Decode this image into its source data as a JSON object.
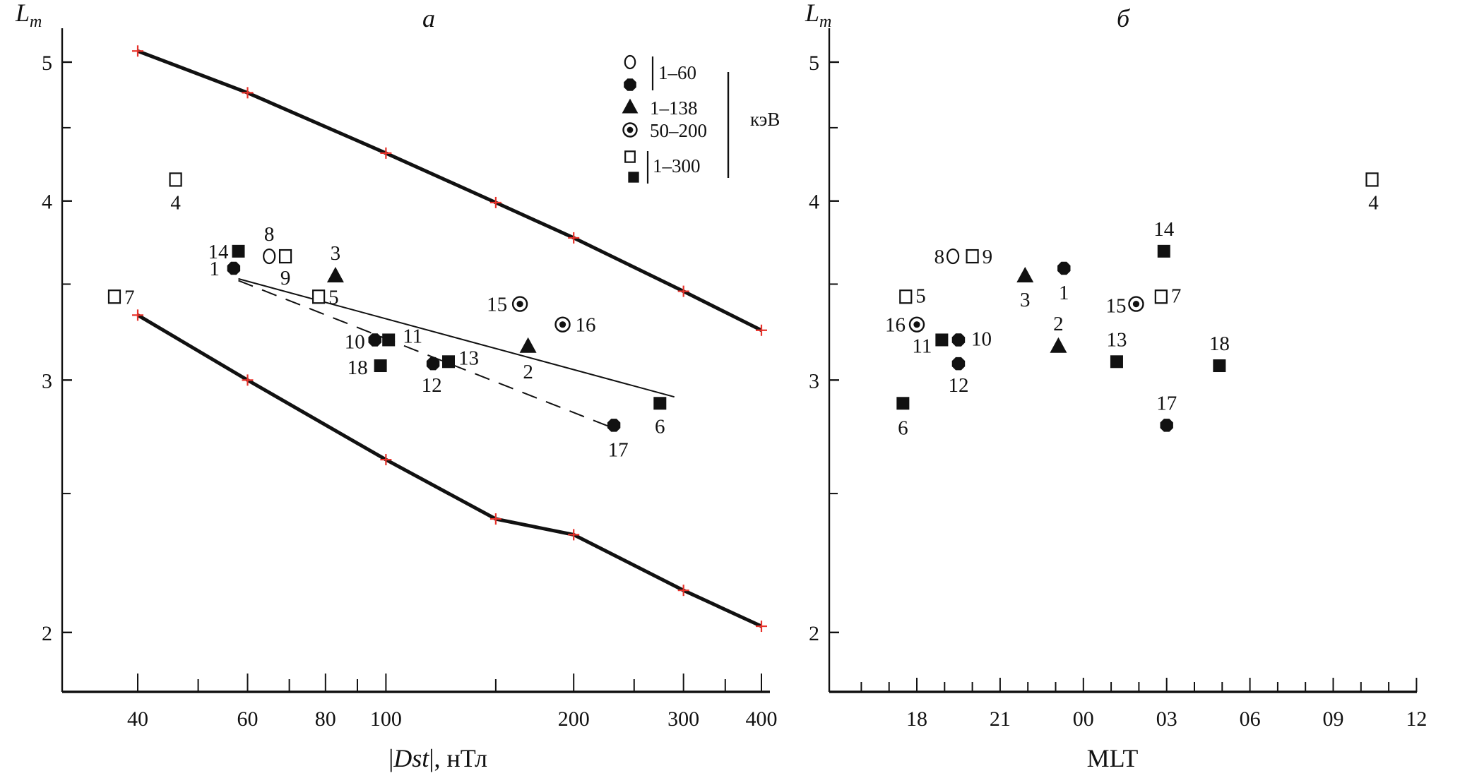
{
  "chart_data": [
    {
      "panel": "a",
      "type": "scatter",
      "title": "a",
      "xlabel_prefix": "|",
      "xlabel_italic": "Dst",
      "xlabel_suffix": "|, нТл",
      "ylabel_main": "L",
      "ylabel_sub": "m",
      "xscale": "log",
      "yscale": "log",
      "xlim": [
        30,
        410
      ],
      "ylim": [
        1.77,
        5.2
      ],
      "xticks_major": [
        40,
        60,
        80,
        100,
        200,
        300,
        400
      ],
      "xticks_minor": [
        50,
        70,
        90,
        150,
        250,
        350
      ],
      "yticks_major": [
        2,
        3,
        4,
        5
      ],
      "yticks_minor": [
        2.5,
        3.5,
        4.5
      ],
      "grid": false,
      "legend": {
        "position": "top-right",
        "unit": "кэВ",
        "entries": [
          {
            "markers": [
              "open-circle",
              "filled-circle"
            ],
            "label": "1–60",
            "bracket": true
          },
          {
            "markers": [
              "filled-triangle"
            ],
            "label": "1–138",
            "bracket": false
          },
          {
            "markers": [
              "circled-dot"
            ],
            "label": "50–200",
            "bracket": false
          },
          {
            "markers": [
              "open-square",
              "filled-square"
            ],
            "label": "1–300",
            "bracket": true
          }
        ]
      },
      "lines": [
        {
          "name": "upper-bound",
          "style": "thick-solid",
          "marker": "red-plus",
          "x": [
            40,
            60,
            100,
            150,
            200,
            300,
            400
          ],
          "y": [
            5.09,
            4.76,
            4.32,
            3.99,
            3.77,
            3.46,
            3.25
          ]
        },
        {
          "name": "lower-bound",
          "style": "thick-solid",
          "marker": "red-plus",
          "x": [
            40,
            60,
            100,
            150,
            200,
            300,
            400
          ],
          "y": [
            3.33,
            3.0,
            2.64,
            2.4,
            2.34,
            2.14,
            2.02
          ]
        },
        {
          "name": "fit-solid",
          "style": "thin-solid",
          "x": [
            58,
            290
          ],
          "y": [
            3.53,
            2.92
          ]
        },
        {
          "name": "fit-dashed",
          "style": "dashed",
          "x": [
            58,
            235
          ],
          "y": [
            3.52,
            2.77
          ]
        }
      ]
    },
    {
      "panel": "б",
      "type": "scatter",
      "title": "б",
      "xlabel": "MLT",
      "ylabel_main": "L",
      "ylabel_sub": "m",
      "yscale": "log",
      "xlim_hours": [
        15.0,
        36.0
      ],
      "ylim": [
        1.77,
        5.2
      ],
      "xticks_major_labels": [
        "18",
        "21",
        "00",
        "03",
        "06",
        "09",
        "12"
      ],
      "xticks_major_hours": [
        18,
        21,
        24,
        27,
        30,
        33,
        36
      ],
      "xticks_minor_hours": [
        16,
        17,
        19,
        20,
        22,
        23,
        25,
        26,
        28,
        29,
        31,
        32,
        34,
        35
      ],
      "yticks_major": [
        2,
        3,
        4,
        5
      ],
      "yticks_minor": [
        2.5,
        3.5,
        4.5
      ],
      "grid": false
    }
  ],
  "events": [
    {
      "id": "1",
      "marker": "filled-circle",
      "energy": "1–60",
      "dst": 57,
      "L": 3.59,
      "mlt": 23.3
    },
    {
      "id": "2",
      "marker": "filled-triangle",
      "energy": "1–138",
      "dst": 169,
      "L": 3.17,
      "mlt": 23.1
    },
    {
      "id": "3",
      "marker": "filled-triangle",
      "energy": "1–138",
      "dst": 83,
      "L": 3.55,
      "mlt": 21.9
    },
    {
      "id": "4",
      "marker": "open-square",
      "energy": "1–300",
      "dst": 46,
      "L": 4.14,
      "mlt": 10.4
    },
    {
      "id": "5",
      "marker": "open-square",
      "energy": "1–300",
      "dst": 78,
      "L": 3.43,
      "mlt": 17.6
    },
    {
      "id": "6",
      "marker": "filled-square",
      "energy": "1–300",
      "dst": 275,
      "L": 2.89,
      "mlt": 17.5
    },
    {
      "id": "7",
      "marker": "open-square",
      "energy": "1–300",
      "dst": 36.7,
      "L": 3.43,
      "mlt": 2.8
    },
    {
      "id": "8",
      "marker": "open-circle",
      "energy": "1–60",
      "dst": 65,
      "L": 3.66,
      "mlt": 19.3
    },
    {
      "id": "9",
      "marker": "open-square",
      "energy": "1–300",
      "dst": 69,
      "L": 3.66,
      "mlt": 20.0
    },
    {
      "id": "10",
      "marker": "filled-circle",
      "energy": "1–60",
      "dst": 96,
      "L": 3.2,
      "mlt": 19.5
    },
    {
      "id": "11",
      "marker": "filled-square",
      "energy": "1–300",
      "dst": 101,
      "L": 3.2,
      "mlt": 18.9
    },
    {
      "id": "12",
      "marker": "filled-circle",
      "energy": "1–60",
      "dst": 119,
      "L": 3.08,
      "mlt": 19.5
    },
    {
      "id": "13",
      "marker": "filled-square",
      "energy": "1–300",
      "dst": 126,
      "L": 3.09,
      "mlt": 1.2
    },
    {
      "id": "14",
      "marker": "filled-square",
      "energy": "1–300",
      "dst": 58,
      "L": 3.69,
      "mlt": 2.9
    },
    {
      "id": "15",
      "marker": "circled-dot",
      "energy": "50–200",
      "dst": 164,
      "L": 3.39,
      "mlt": 1.9
    },
    {
      "id": "16",
      "marker": "circled-dot",
      "energy": "50–200",
      "dst": 192,
      "L": 3.28,
      "mlt": 18.0
    },
    {
      "id": "17",
      "marker": "filled-circle",
      "energy": "1–60",
      "dst": 232,
      "L": 2.79,
      "mlt": 3.0
    },
    {
      "id": "18",
      "marker": "filled-square",
      "energy": "1–300",
      "dst": 98,
      "L": 3.07,
      "mlt": 4.9
    }
  ],
  "colors": {
    "ink": "#111111",
    "bound_marker": "#e8322a"
  }
}
